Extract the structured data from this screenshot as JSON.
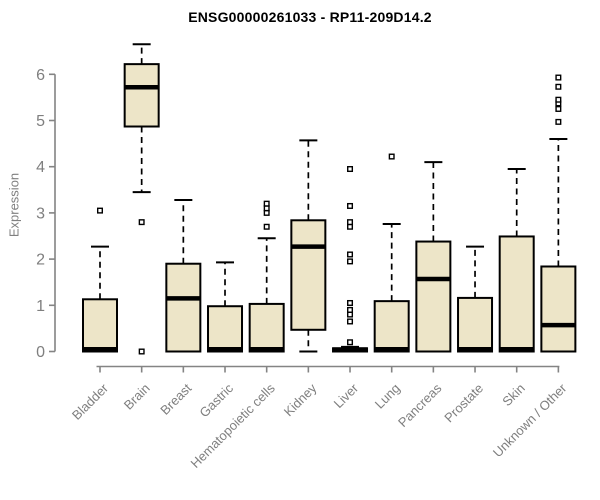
{
  "chart_data": {
    "type": "boxplot",
    "title": "ENSG00000261033 - RP11-209D14.2",
    "ylabel": "Expression",
    "xlabel": "",
    "y_ticks": [
      0,
      1,
      2,
      3,
      4,
      5,
      6
    ],
    "ylim": [
      0,
      6.7
    ],
    "grid": false,
    "legend": "none",
    "categories": [
      "Bladder",
      "Brain",
      "Breast",
      "Gastric",
      "Hematopoietic cells",
      "Kidney",
      "Liver",
      "Lung",
      "Pancreas",
      "Prostate",
      "Skin",
      "Unknown / Other"
    ],
    "series": [
      {
        "name": "Bladder",
        "whisker_low": 0,
        "q1": 0,
        "median": 0.05,
        "q3": 1.13,
        "whisker_high": 2.27,
        "outliers": [
          3.05
        ]
      },
      {
        "name": "Brain",
        "whisker_low": 3.45,
        "q1": 4.87,
        "median": 5.72,
        "q3": 6.22,
        "whisker_high": 6.65,
        "outliers": [
          2.8,
          0.0
        ]
      },
      {
        "name": "Breast",
        "whisker_low": 0,
        "q1": 0,
        "median": 1.15,
        "q3": 1.9,
        "whisker_high": 3.28,
        "outliers": []
      },
      {
        "name": "Gastric",
        "whisker_low": 0,
        "q1": 0,
        "median": 0.05,
        "q3": 0.98,
        "whisker_high": 1.93,
        "outliers": []
      },
      {
        "name": "Hematopoietic cells",
        "whisker_low": 0,
        "q1": 0,
        "median": 0.05,
        "q3": 1.03,
        "whisker_high": 2.45,
        "outliers": [
          2.7,
          3.0,
          3.1,
          3.2
        ]
      },
      {
        "name": "Kidney",
        "whisker_low": 0,
        "q1": 0.47,
        "median": 2.27,
        "q3": 2.84,
        "whisker_high": 4.57,
        "outliers": []
      },
      {
        "name": "Liver",
        "whisker_low": 0,
        "q1": 0,
        "median": 0.04,
        "q3": 0.07,
        "whisker_high": 0.1,
        "outliers": [
          0.2,
          0.65,
          0.8,
          0.9,
          1.05,
          1.95,
          2.1,
          2.7,
          2.8,
          3.15,
          3.95
        ]
      },
      {
        "name": "Lung",
        "whisker_low": 0,
        "q1": 0,
        "median": 0.05,
        "q3": 1.09,
        "whisker_high": 2.76,
        "outliers": [
          4.22
        ]
      },
      {
        "name": "Pancreas",
        "whisker_low": 0,
        "q1": 0,
        "median": 1.57,
        "q3": 2.38,
        "whisker_high": 4.1,
        "outliers": []
      },
      {
        "name": "Prostate",
        "whisker_low": 0,
        "q1": 0,
        "median": 0.05,
        "q3": 1.16,
        "whisker_high": 2.27,
        "outliers": []
      },
      {
        "name": "Skin",
        "whisker_low": 0,
        "q1": 0,
        "median": 0.05,
        "q3": 2.49,
        "whisker_high": 3.95,
        "outliers": []
      },
      {
        "name": "Unknown / Other",
        "whisker_low": 0,
        "q1": 0,
        "median": 0.57,
        "q3": 1.84,
        "whisker_high": 4.6,
        "outliers": [
          4.97,
          5.25,
          5.37,
          5.45,
          5.73,
          5.93
        ]
      }
    ],
    "colors": {
      "box_fill": "#EDE5C8",
      "box_border": "#000000",
      "median": "#000000",
      "whisker": "#000000",
      "outlier": "#000000",
      "axis": "#848484",
      "axis_text": "#7F7F7F",
      "title_text": "#000000",
      "background": "#FFFFFF"
    }
  }
}
